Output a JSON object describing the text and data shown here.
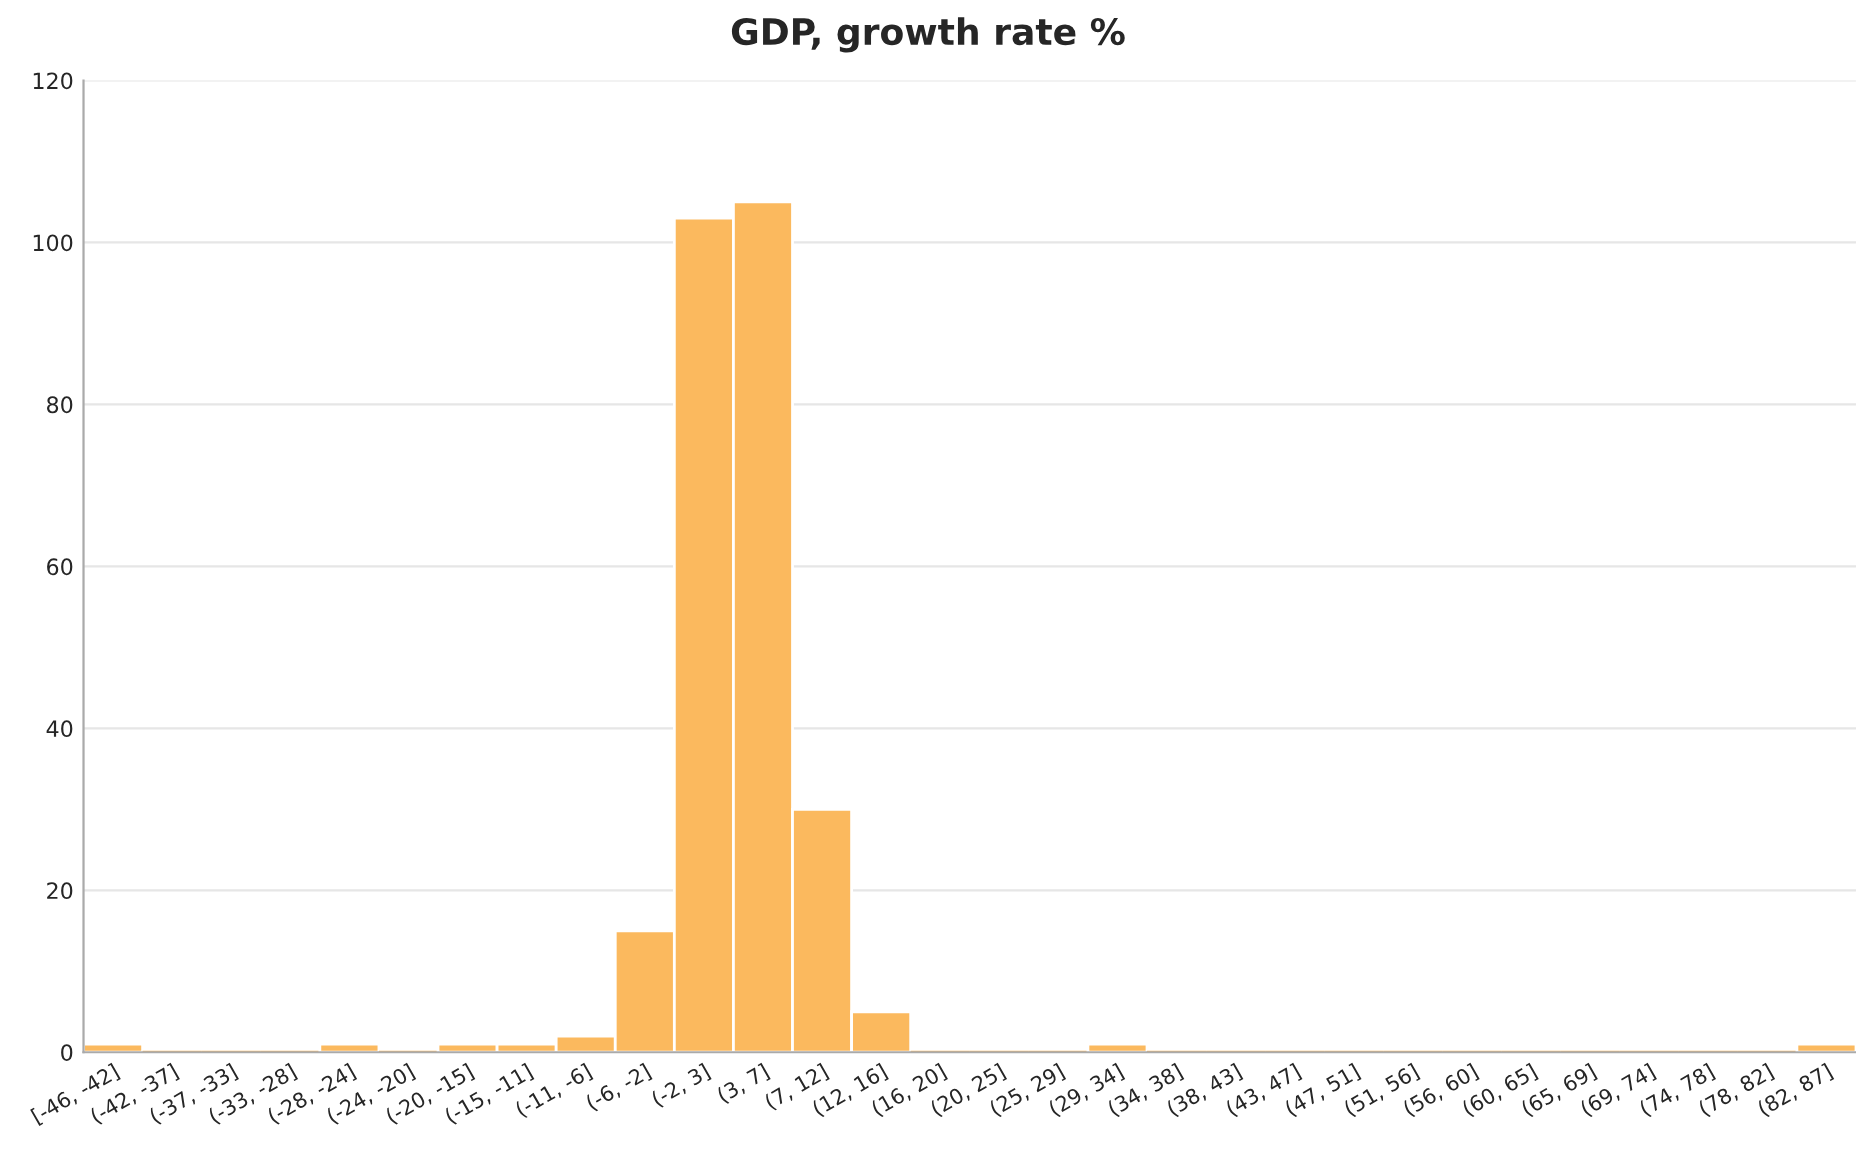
{
  "chart_data": {
    "type": "bar",
    "title": "GDP, growth rate %",
    "categories": [
      "[-46, -42]",
      "(-42, -37]",
      "(-37, -33]",
      "(-33, -28]",
      "(-28, -24]",
      "(-24, -20]",
      "(-20, -15]",
      "(-15, -11]",
      "(-11, -6]",
      "(-6, -2]",
      "(-2, 3]",
      "(3, 7]",
      "(7, 12]",
      "(12, 16]",
      "(16, 20]",
      "(20, 25]",
      "(25, 29]",
      "(29, 34]",
      "(34, 38]",
      "(38, 43]",
      "(43, 47]",
      "(47, 51]",
      "(51, 56]",
      "(56, 60]",
      "(60, 65]",
      "(65, 69]",
      "(69, 74]",
      "(74, 78]",
      "(78, 82]",
      "(82, 87]"
    ],
    "values": [
      1,
      0,
      0,
      0,
      1,
      0,
      1,
      1,
      2,
      15,
      103,
      105,
      30,
      5,
      0,
      0,
      0,
      1,
      0,
      0,
      0,
      0,
      0,
      0,
      0,
      0,
      0,
      0,
      0,
      1
    ],
    "color": "#fbb95e",
    "ylim": [
      0,
      120
    ],
    "yticks": [
      0,
      20,
      40,
      60,
      80,
      100,
      120
    ],
    "grid": "y"
  }
}
